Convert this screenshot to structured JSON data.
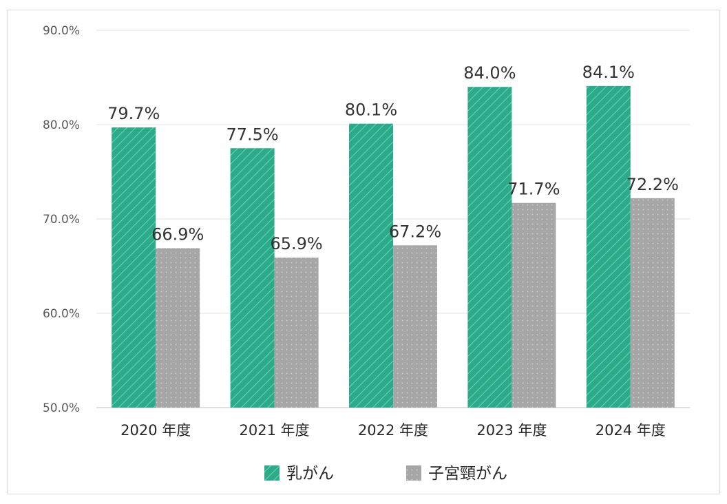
{
  "chart_data": {
    "type": "bar",
    "categories": [
      "2020 年度",
      "2021 年度",
      "2022 年度",
      "2023 年度",
      "2024 年度"
    ],
    "series": [
      {
        "name": "乳がん",
        "values": [
          79.7,
          77.5,
          80.1,
          84.0,
          84.1
        ],
        "labels": [
          "79.7%",
          "77.5%",
          "80.1%",
          "84.0%",
          "84.1%"
        ],
        "color": "#2bab8a",
        "pattern": "diagonal-stripes"
      },
      {
        "name": "子宮頸がん",
        "values": [
          66.9,
          65.9,
          67.2,
          71.7,
          72.2
        ],
        "labels": [
          "66.9%",
          "65.9%",
          "67.2%",
          "71.7%",
          "72.2%"
        ],
        "color": "#a6a6a6",
        "pattern": "dots"
      }
    ],
    "ylim": [
      50.0,
      90.0
    ],
    "yticks": [
      90.0,
      80.0,
      70.0,
      60.0,
      50.0
    ],
    "ytick_labels": [
      "90.0%",
      "80.0%",
      "70.0%",
      "60.0%",
      "50.0%"
    ],
    "grid": true,
    "legend_position": "bottom-center",
    "title": "",
    "xlabel": "",
    "ylabel": ""
  }
}
